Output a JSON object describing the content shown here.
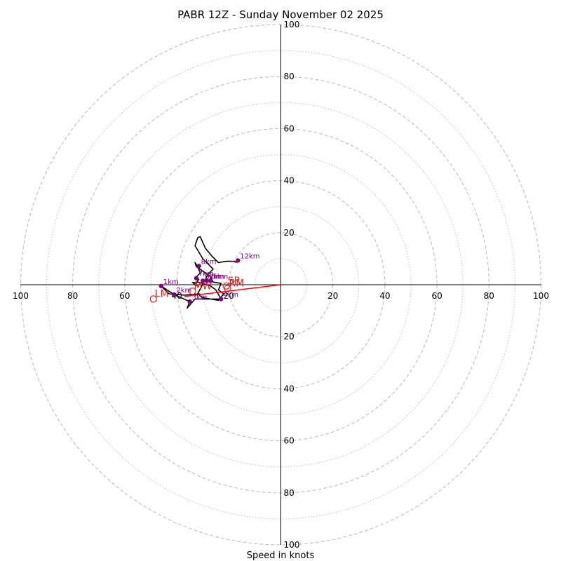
{
  "chart_data": {
    "type": "hodograph",
    "title": "PABR 12Z - Sunday November 02 2025",
    "xlabel": "Speed in knots",
    "ylabel": "",
    "x_range": [
      -100,
      100
    ],
    "y_range": [
      -100,
      100
    ],
    "ring_major": [
      20,
      40,
      60,
      80,
      100
    ],
    "ring_minor": [
      10,
      30,
      50,
      70,
      90
    ],
    "x_tick_labels": [
      "100",
      "80",
      "60",
      "40",
      "20",
      "20",
      "40",
      "60",
      "80",
      "100"
    ],
    "x_tick_values": [
      -100,
      -80,
      -60,
      -40,
      -20,
      20,
      40,
      60,
      80,
      100
    ],
    "y_tick_labels": [
      "100",
      "80",
      "60",
      "40",
      "20",
      "20",
      "40",
      "60",
      "80",
      "100"
    ],
    "y_tick_values": [
      100,
      80,
      60,
      40,
      20,
      -20,
      -40,
      -60,
      -80,
      -100
    ],
    "profile": [
      [
        -31,
        -3.5
      ],
      [
        -37,
        -4.0
      ],
      [
        -43,
        -3.5
      ],
      [
        -46,
        -0.5
      ],
      [
        -41,
        -3.8
      ],
      [
        -35,
        -6.5
      ],
      [
        -36,
        -9.0
      ],
      [
        -33,
        -5.5
      ],
      [
        -23,
        -5.5
      ],
      [
        -25,
        -2.0
      ],
      [
        -27,
        -0.5
      ],
      [
        -30,
        0.5
      ],
      [
        -32,
        1.0
      ],
      [
        -34,
        0.8
      ],
      [
        -32,
        -0.5
      ],
      [
        -33,
        0.2
      ],
      [
        -31.5,
        2.0
      ],
      [
        -32.5,
        3.0
      ],
      [
        -31,
        4.5
      ],
      [
        -32,
        7.0
      ],
      [
        -33,
        8.5
      ],
      [
        -32.5,
        7.0
      ],
      [
        -29,
        4.5
      ],
      [
        -27,
        3.0
      ],
      [
        -26.5,
        2.0
      ],
      [
        -26,
        1.0
      ],
      [
        -23,
        0.5
      ],
      [
        -24,
        -2.0
      ],
      [
        -22,
        -3.5
      ],
      [
        -24,
        -6.0
      ],
      [
        -30,
        -5.0
      ],
      [
        -32,
        -3.5
      ],
      [
        -29,
        2.0
      ],
      [
        -28,
        4.0
      ],
      [
        -26,
        6.0
      ],
      [
        -30,
        10.0
      ],
      [
        -33,
        15.0
      ],
      [
        -32,
        18.0
      ],
      [
        -31,
        18.5
      ],
      [
        -29,
        14.0
      ],
      [
        -26.5,
        11.0
      ],
      [
        -24,
        8.5
      ],
      [
        -21,
        9.0
      ],
      [
        -18,
        9.0
      ],
      [
        -17,
        8.5
      ]
    ],
    "height_markers": [
      {
        "label": "1km",
        "u": -46,
        "v": -0.5
      },
      {
        "label": "2km",
        "u": -41,
        "v": -3.8
      },
      {
        "label": "3km",
        "u": -35,
        "v": -6.5
      },
      {
        "label": "4km",
        "u": -23,
        "v": -5.5
      },
      {
        "label": "5km",
        "u": -27,
        "v": 1.5
      },
      {
        "label": "6km",
        "u": -30,
        "v": 1.5
      },
      {
        "label": "7km",
        "u": -32.5,
        "v": 2.5
      },
      {
        "label": "8km",
        "u": -31.5,
        "v": 7.2
      },
      {
        "label": "9km",
        "u": -28.5,
        "v": 1.5
      },
      {
        "label": "12km",
        "u": -16.5,
        "v": 9.3
      }
    ],
    "storm_vectors": [
      {
        "label": "LM",
        "u": -49,
        "v": -5.5
      },
      {
        "label": "MW",
        "u": -34,
        "v": -2.5
      },
      {
        "label": "RM",
        "u": -20.5,
        "v": -1.5
      },
      {
        "label": "SR",
        "u": -21,
        "v": -0.5
      }
    ],
    "shear_vector_from": [
      0,
      0
    ],
    "shear_vector_to": [
      -37,
      -4.5
    ],
    "colors": {
      "ring": "#bfbfbf",
      "axis": "#000000",
      "profile": "#000000",
      "marker": "#800080",
      "storm": "#d62728",
      "shear": "#ff0000"
    }
  }
}
